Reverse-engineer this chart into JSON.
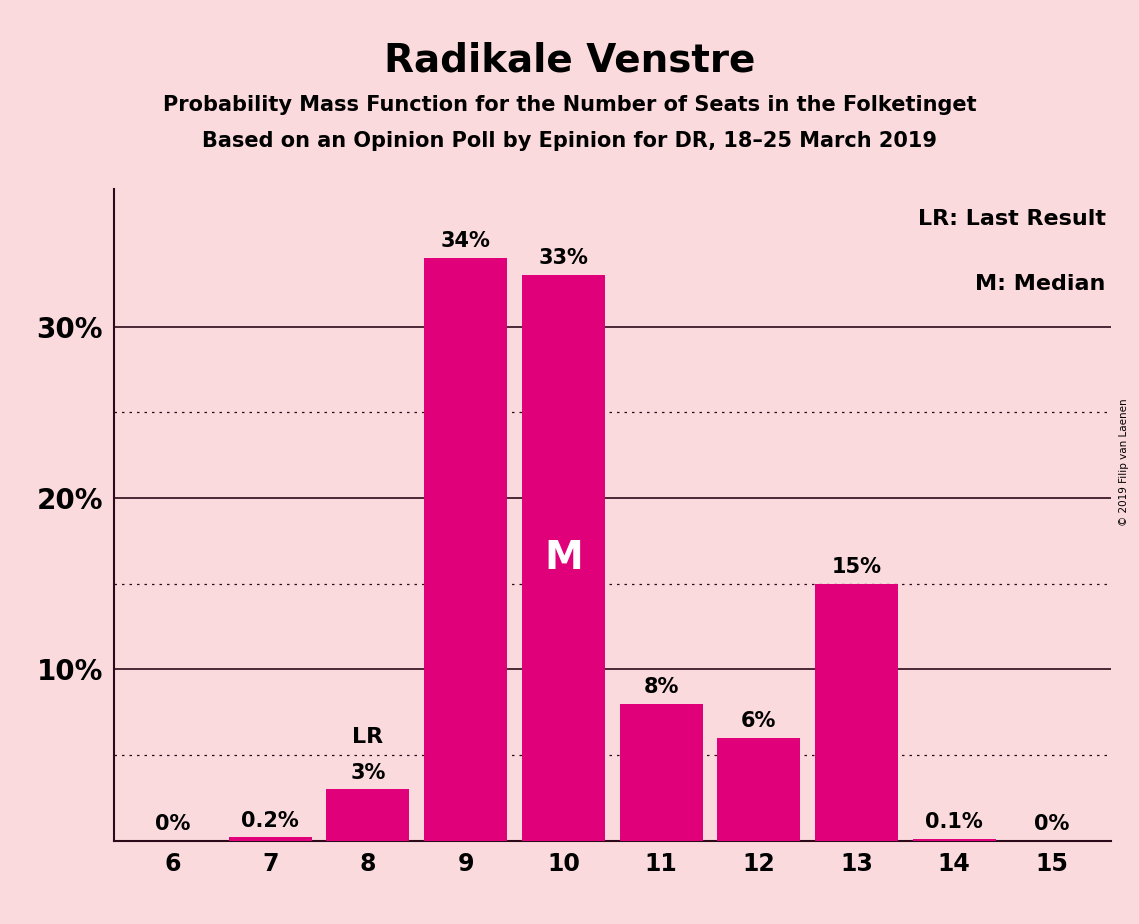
{
  "title": "Radikale Venstre",
  "subtitle1": "Probability Mass Function for the Number of Seats in the Folketinget",
  "subtitle2": "Based on an Opinion Poll by Epinion for DR, 18–25 March 2019",
  "categories": [
    6,
    7,
    8,
    9,
    10,
    11,
    12,
    13,
    14,
    15
  ],
  "values": [
    0.0,
    0.2,
    3.0,
    34.0,
    33.0,
    8.0,
    6.0,
    15.0,
    0.1,
    0.0
  ],
  "bar_labels": [
    "0%",
    "0.2%",
    "3%",
    "34%",
    "33%",
    "8%",
    "6%",
    "15%",
    "0.1%",
    "0%"
  ],
  "bar_color": "#E0007A",
  "background_color": "#FADADD",
  "ylim": [
    0,
    38
  ],
  "major_yticks": [
    10,
    20,
    30
  ],
  "dotted_yticks": [
    5,
    15,
    25
  ],
  "solid_yticks": [
    10,
    20,
    30
  ],
  "lr_bar_index": 2,
  "median_bar_index": 4,
  "legend_text1": "LR: Last Result",
  "legend_text2": "M: Median",
  "copyright_text": "© 2019 Filip van Laenen",
  "title_fontsize": 28,
  "subtitle_fontsize": 15,
  "label_fontsize": 15,
  "axis_fontsize": 17,
  "ytick_fontsize": 20
}
